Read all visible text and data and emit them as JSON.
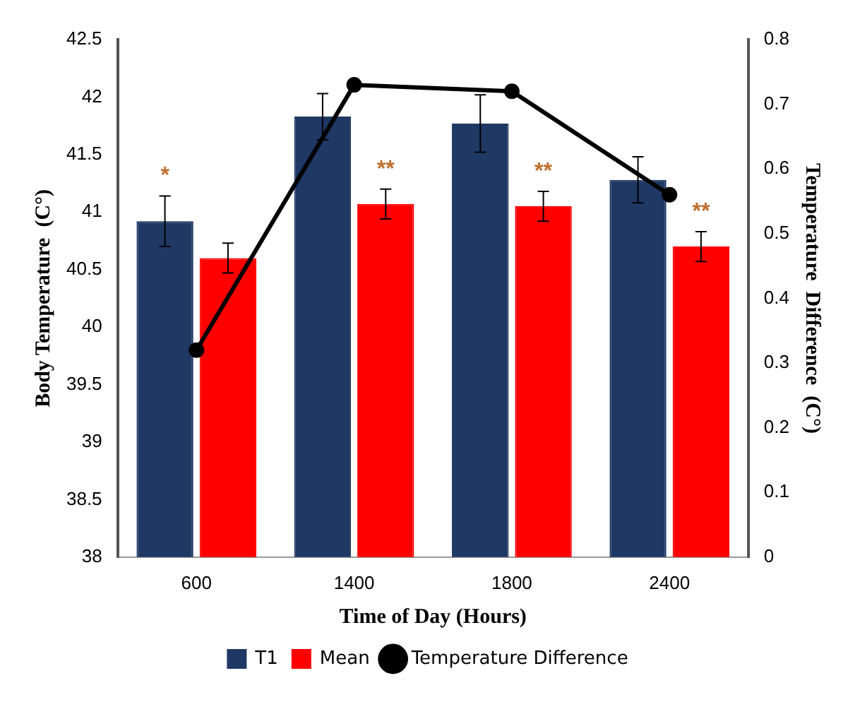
{
  "chart_data": {
    "type": "bar",
    "xlabel": "Time of Day (Hours)",
    "ylabel": "Body Temperature  (C°)",
    "y2label": "Temperature  Difference  (C°)",
    "categories": [
      "600",
      "1400",
      "1800",
      "2400"
    ],
    "series": [
      {
        "name": "T1",
        "color": "#1f3864",
        "values": [
          40.92,
          41.83,
          41.77,
          41.28
        ],
        "errors": [
          0.22,
          0.2,
          0.25,
          0.2
        ]
      },
      {
        "name": "Mean",
        "color": "#ff0000",
        "values": [
          40.6,
          41.07,
          41.05,
          40.7
        ],
        "errors": [
          0.13,
          0.13,
          0.13,
          0.13
        ]
      },
      {
        "name": "Temperature Difference",
        "type": "line",
        "axis": "y2",
        "color": "#000000",
        "values": [
          0.32,
          0.73,
          0.72,
          0.56
        ]
      }
    ],
    "ylim": [
      38,
      42.5
    ],
    "yticks": [
      38,
      38.5,
      39,
      39.5,
      40,
      40.5,
      41,
      41.5,
      42,
      42.5
    ],
    "y2lim": [
      0,
      0.8
    ],
    "y2ticks": [
      0,
      0.1,
      0.2,
      0.3,
      0.4,
      0.5,
      0.6,
      0.7,
      0.8
    ],
    "annotations": [
      "*",
      "**",
      "**",
      "**"
    ],
    "grid": false,
    "legend": "bottom",
    "marker": "circle",
    "line_style": "solid"
  }
}
